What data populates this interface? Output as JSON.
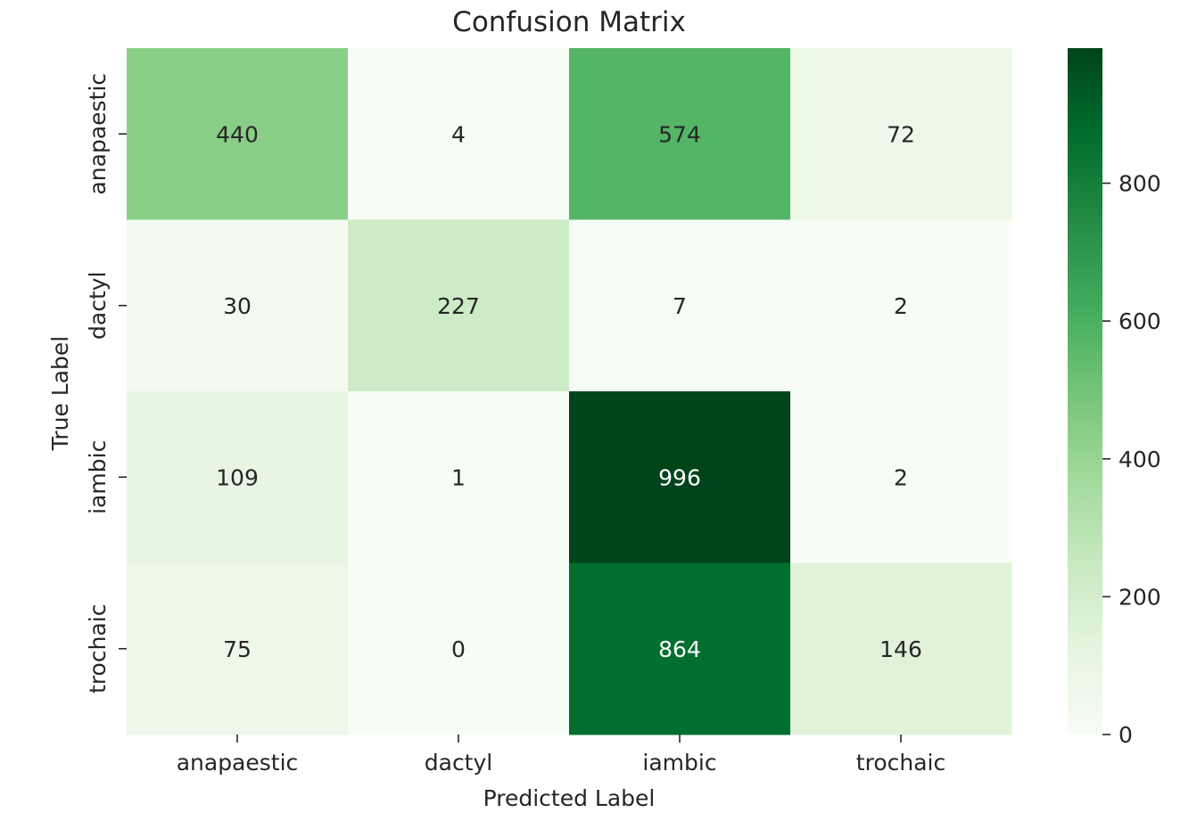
{
  "chart_data": {
    "type": "heatmap",
    "title": "Confusion Matrix",
    "xlabel": "Predicted Label",
    "ylabel": "True Label",
    "x_categories": [
      "anapaestic",
      "dactyl",
      "iambic",
      "trochaic"
    ],
    "y_categories": [
      "anapaestic",
      "dactyl",
      "iambic",
      "trochaic"
    ],
    "values": [
      [
        440,
        4,
        574,
        72
      ],
      [
        30,
        227,
        7,
        2
      ],
      [
        109,
        1,
        996,
        2
      ],
      [
        75,
        0,
        864,
        146
      ]
    ],
    "colorscale": "Greens",
    "colorbar": {
      "range": [
        0,
        996
      ],
      "ticks": [
        0,
        200,
        400,
        600,
        800
      ]
    }
  }
}
